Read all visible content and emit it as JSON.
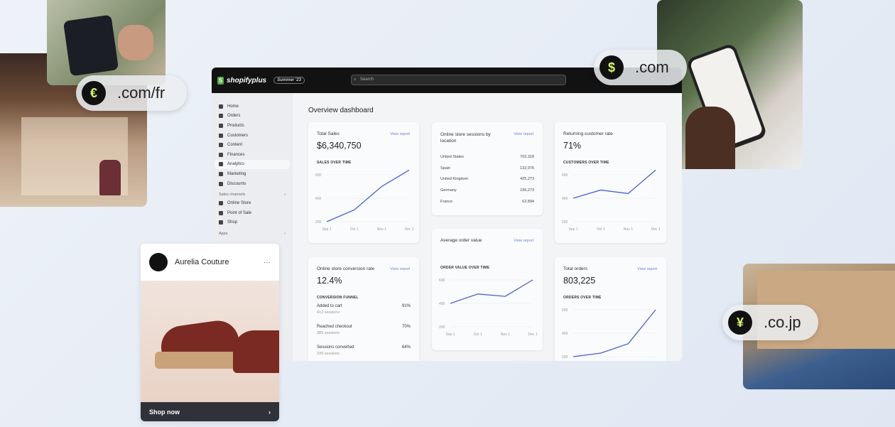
{
  "app": {
    "brand": "shopifyplus",
    "edition": "Summer '23",
    "search_placeholder": "Search"
  },
  "sidebar": {
    "items": [
      {
        "label": "Home"
      },
      {
        "label": "Orders"
      },
      {
        "label": "Products"
      },
      {
        "label": "Customers"
      },
      {
        "label": "Content"
      },
      {
        "label": "Finances"
      },
      {
        "label": "Analytics",
        "active": true
      },
      {
        "label": "Marketing"
      },
      {
        "label": "Discounts"
      }
    ],
    "sales_channels_label": "Sales channels",
    "channels": [
      {
        "label": "Online Store"
      },
      {
        "label": "Point of Sale"
      },
      {
        "label": "Shop"
      }
    ],
    "apps_label": "Apps"
  },
  "page": {
    "title": "Overview dashboard",
    "view_report": "View report"
  },
  "cards": {
    "total_sales": {
      "title": "Total Sales",
      "value": "$6,340,750",
      "chart_label": "SALES OVER TIME"
    },
    "sessions": {
      "title": "Online store sessions by location",
      "rows": [
        {
          "country": "United States",
          "value": "702,318"
        },
        {
          "country": "Spain",
          "value": "132,076"
        },
        {
          "country": "United Kingdom",
          "value": "425,273"
        },
        {
          "country": "Germany",
          "value": "236,273"
        },
        {
          "country": "France",
          "value": "62,894"
        }
      ]
    },
    "returning": {
      "title": "Returning customer rate",
      "value": "71%",
      "chart_label": "CUSTOMERS OVER TIME"
    },
    "conversion": {
      "title": "Online store conversion rate",
      "value": "12.4%",
      "funnel_label": "CONVERSION FUNNEL",
      "steps": [
        {
          "label": "Added to cart",
          "sessions": "412 sessions",
          "pct": "91%"
        },
        {
          "label": "Reached checkout",
          "sessions": "389 sessions",
          "pct": "70%"
        },
        {
          "label": "Sessions converted",
          "sessions": "339 sessions",
          "pct": "64%"
        }
      ]
    },
    "aov": {
      "title": "Average order value",
      "chart_label": "ORDER VALUE OVER TIME"
    },
    "orders": {
      "title": "Total orders",
      "value": "803,225",
      "chart_label": "ORDERS OVER TIME"
    }
  },
  "chart_data": [
    {
      "type": "line",
      "title": "SALES OVER TIME",
      "categories": [
        "Sep 1",
        "Oct 1",
        "Nov 1",
        "Dec 1"
      ],
      "values": [
        200,
        300,
        500,
        640
      ],
      "yticks": [
        200,
        400,
        600
      ],
      "ylim": [
        200,
        600
      ],
      "color": "#4a5fd1"
    },
    {
      "type": "line",
      "title": "CUSTOMERS OVER TIME",
      "categories": [
        "Sep 1",
        "Oct 1",
        "Nov 1",
        "Dec 1"
      ],
      "values": [
        400,
        470,
        440,
        640
      ],
      "yticks": [
        200,
        400,
        600
      ],
      "ylim": [
        200,
        600
      ],
      "color": "#4a5fd1"
    },
    {
      "type": "line",
      "title": "ORDER VALUE OVER TIME",
      "categories": [
        "Sep 1",
        "Oct 1",
        "Nov 1",
        "Dec 1"
      ],
      "values": [
        400,
        480,
        460,
        600
      ],
      "yticks": [
        200,
        400,
        600
      ],
      "ylim": [
        200,
        600
      ],
      "color": "#4a5fd1"
    },
    {
      "type": "line",
      "title": "ORDERS OVER TIME",
      "categories": [
        "Sep 1",
        "Oct 1",
        "Nov 1",
        "Dec 1"
      ],
      "values": [
        200,
        230,
        310,
        600
      ],
      "yticks": [
        200,
        400,
        600
      ],
      "ylim": [
        200,
        600
      ],
      "color": "#4a5fd1"
    }
  ],
  "pills": [
    {
      "symbol": "€",
      "domain": ".com/fr"
    },
    {
      "symbol": "$",
      "domain": ".com"
    },
    {
      "symbol": "¥",
      "domain": ".co.jp"
    }
  ],
  "product_card": {
    "store": "Aurelia Couture",
    "menu": "···",
    "cta": "Shop now",
    "cta_icon": "chevron-right-icon"
  }
}
